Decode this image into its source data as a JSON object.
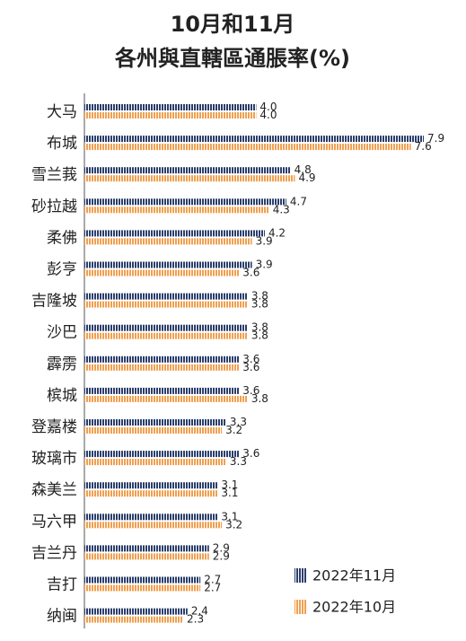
{
  "chart_data": {
    "type": "bar",
    "orientation": "horizontal",
    "title": [
      "10月和11月",
      "各州與直轄區通脹率(%)"
    ],
    "categories": [
      "大马",
      "布城",
      "雪兰莪",
      "砂拉越",
      "柔佛",
      "彭亨",
      "吉隆坡",
      "沙巴",
      "霹雳",
      "槟城",
      "登嘉楼",
      "玻璃市",
      "森美兰",
      "马六甲",
      "吉兰丹",
      "吉打",
      "纳闽"
    ],
    "series": [
      {
        "name": "2022年11月",
        "color": "#2b3f6b",
        "values": [
          4.0,
          7.9,
          4.8,
          4.7,
          4.2,
          3.9,
          3.8,
          3.8,
          3.6,
          3.6,
          3.3,
          3.6,
          3.1,
          3.1,
          2.9,
          2.7,
          2.4
        ],
        "value_labels": [
          "4.0",
          "7.9",
          "4.8",
          "4.7",
          "4.2",
          "3.9",
          "3.8",
          "3.8",
          "3.6",
          "3.6",
          "3.3",
          "3.6",
          "3.1",
          "3.1",
          "2.9",
          "2.7",
          "2.4"
        ]
      },
      {
        "name": "2022年10月",
        "color": "#f0a050",
        "values": [
          4.0,
          7.6,
          4.9,
          4.3,
          3.9,
          3.6,
          3.8,
          3.8,
          3.6,
          3.8,
          3.2,
          3.3,
          3.1,
          3.2,
          2.9,
          2.7,
          2.3
        ],
        "value_labels": [
          "4.0",
          "7.6",
          "4.9",
          "4.3",
          "3.9",
          "3.6",
          "3.8",
          "3.8",
          "3.6",
          "3.8",
          "3.2",
          "3.3",
          "3.1",
          "3.2",
          "2.9",
          "2.7",
          "2.3"
        ]
      }
    ],
    "legend": "lower right"
  }
}
